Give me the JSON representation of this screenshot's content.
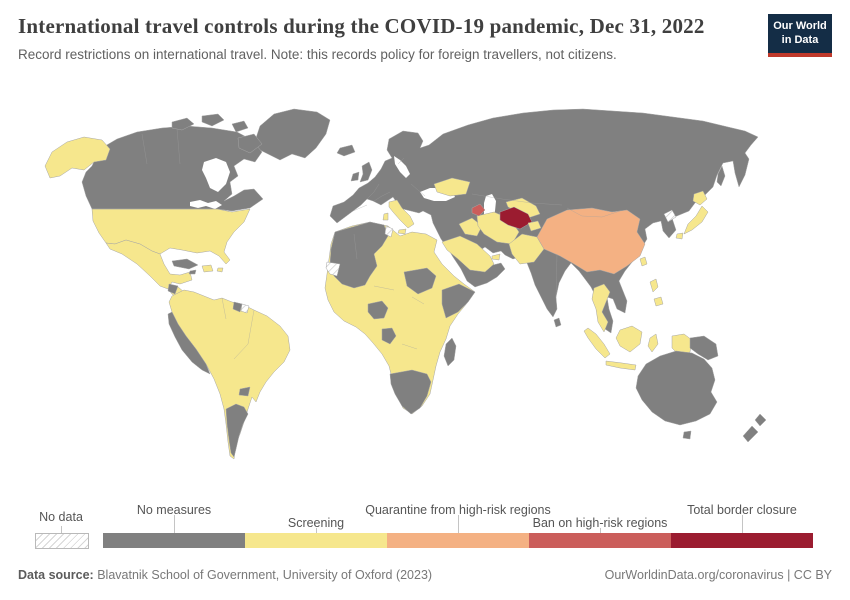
{
  "header": {
    "title": "International travel controls during the COVID-19 pandemic, Dec 31, 2022",
    "subtitle": "Record restrictions on international travel. Note: this records policy for foreign travellers, not citizens.",
    "logo": {
      "line1": "Our World",
      "line2": "in Data",
      "bg": "#142d46",
      "accent": "#c0392b"
    }
  },
  "legend": {
    "no_data_label": "No data",
    "categories": [
      {
        "key": "no_measures",
        "label": "No measures",
        "row": 1
      },
      {
        "key": "screening",
        "label": "Screening",
        "row": 2
      },
      {
        "key": "quarantine_high_risk",
        "label": "Quarantine from high-risk regions",
        "row": 1
      },
      {
        "key": "ban_high_risk",
        "label": "Ban on high-risk regions",
        "row": 2
      },
      {
        "key": "total_closure",
        "label": "Total border closure",
        "row": 1
      }
    ]
  },
  "palette": {
    "no_measures": "#808080",
    "screening": "#f6e78d",
    "quarantine_high_risk": "#f4b183",
    "ban_high_risk": "#cb5e5b",
    "total_closure": "#9b1c30",
    "sea": "#ffffff"
  },
  "footer": {
    "source_label": "Data source:",
    "source_text": " Blavatnik School of Government, University of Oxford (2023)",
    "right_text": "OurWorldinData.org/coronavirus | CC BY"
  },
  "map": {
    "regions": {
      "greenland": "no_measures",
      "canada": "no_measures",
      "arctic-islands": "no_measures",
      "alaska": "screening",
      "usa": "screening",
      "mexico": "screening",
      "central-america": "screening",
      "guatemala": "no_measures",
      "panama": "no_measures",
      "cuba": "no_measures",
      "hispaniola": "screening",
      "jamaica": "no_measures",
      "puerto-rico": "screening",
      "south-america": "screening",
      "ecuador-peru": "no_measures",
      "argentina": "no_measures",
      "paraguay": "no_measures",
      "guyana": "no_measures",
      "suriname": "no_data",
      "africa": "screening",
      "maghreb": "no_measures",
      "western-sahara": "no_data",
      "tunisia": "no_data",
      "nigeria": "no_measures",
      "gabon-congo": "no_measures",
      "sudan": "no_measures",
      "somalia": "no_measures",
      "southern-africa": "no_measures",
      "madagascar": "no_measures",
      "eurasia": "no_measures",
      "iceland": "no_measures",
      "uk": "no_measures",
      "ireland": "no_measures",
      "italy": "screening",
      "sardinia": "screening",
      "ukraine": "screening",
      "iraq": "screening",
      "saudi-arabia": "screening",
      "uae": "screening",
      "iran": "screening",
      "azerbaijan": "ban_high_risk",
      "uzbekistan": "screening",
      "turkmenistan": "total_closure",
      "tajikistan": "screening",
      "pakistan": "screening",
      "nepal": "screening",
      "bangladesh": "screening",
      "china": "quarantine_high_risk",
      "thailand": "screening",
      "north-korea": "no_data",
      "sakhalin": "no_measures",
      "japan": "screening",
      "taiwan": "screening",
      "philippines": "screening",
      "indonesia": "screening",
      "sri-lanka": "no_measures",
      "papua-new-guinea": "no_measures",
      "australia": "no_measures",
      "tasmania": "no_measures",
      "new-zealand": "no_measures"
    }
  }
}
